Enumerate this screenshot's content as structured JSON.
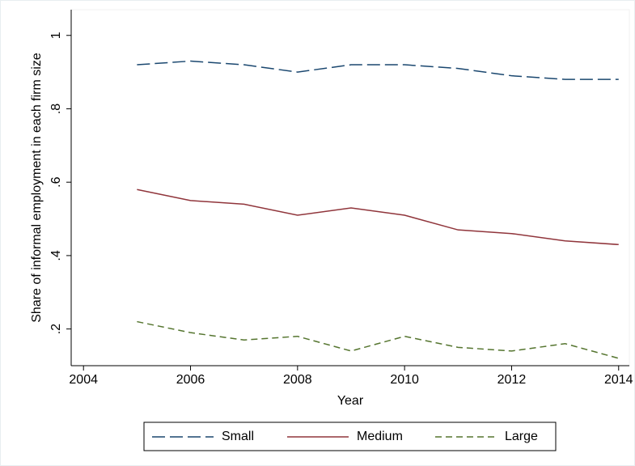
{
  "chart_data": {
    "type": "line",
    "x_label": "Year",
    "y_label": "Share of informal employment in each firm size",
    "x": [
      2005,
      2006,
      2007,
      2008,
      2009,
      2010,
      2011,
      2012,
      2013,
      2014
    ],
    "series": [
      {
        "name": "Small",
        "color": "#1a476f",
        "dash": "long",
        "values": [
          0.92,
          0.93,
          0.92,
          0.9,
          0.92,
          0.92,
          0.91,
          0.89,
          0.88,
          0.88
        ]
      },
      {
        "name": "Medium",
        "color": "#90353b",
        "dash": "solid",
        "values": [
          0.58,
          0.55,
          0.54,
          0.51,
          0.53,
          0.51,
          0.47,
          0.46,
          0.44,
          0.43
        ]
      },
      {
        "name": "Large",
        "color": "#55752f",
        "dash": "short",
        "values": [
          0.22,
          0.19,
          0.17,
          0.18,
          0.14,
          0.18,
          0.15,
          0.14,
          0.16,
          0.12
        ]
      }
    ],
    "xlim": [
      2003.77,
      2014.2
    ],
    "xticks": [
      2004,
      2006,
      2008,
      2010,
      2012,
      2014
    ],
    "ylim": [
      0.1,
      1.07
    ],
    "yticks": [
      {
        "value": 0.2,
        "label": ".2"
      },
      {
        "value": 0.4,
        "label": ".4"
      },
      {
        "value": 0.6,
        "label": ".6"
      },
      {
        "value": 0.8,
        "label": ".8"
      },
      1
    ],
    "grid": false,
    "legend": "bottom"
  }
}
